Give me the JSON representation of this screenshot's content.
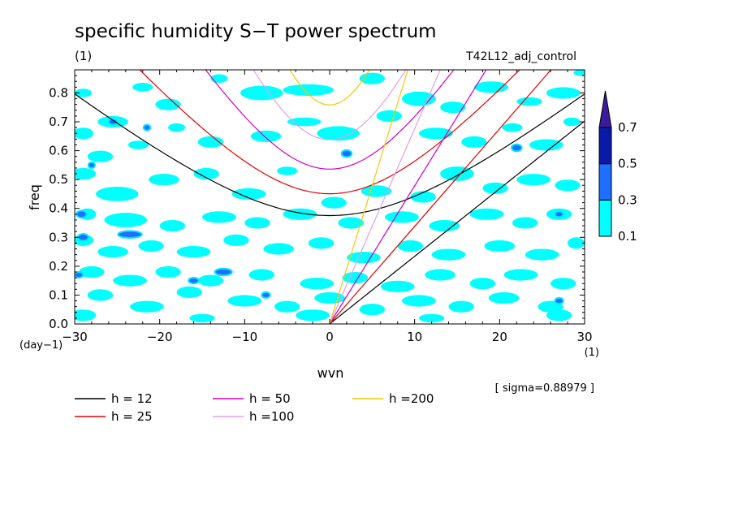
{
  "chart_data": {
    "type": "heatmap",
    "title": "specific humidity S−T power spectrum",
    "units_label": "(1)",
    "run_label": "T42L12_adj_control",
    "xlabel": "wvn",
    "ylabel": "freq",
    "x_unit_label": "(1)",
    "y_unit_label": "(day−1)",
    "xlim": [
      -30,
      30
    ],
    "ylim": [
      0,
      0.88
    ],
    "x_ticks": [
      -30,
      -20,
      -10,
      0,
      10,
      20,
      30
    ],
    "x_tick_labels": [
      "−30",
      "−20",
      "−10",
      "0",
      "10",
      "20",
      "30"
    ],
    "y_ticks": [
      0,
      0.1,
      0.2,
      0.3,
      0.4,
      0.5,
      0.6,
      0.7,
      0.8
    ],
    "y_tick_labels": [
      "0.0",
      "0.1",
      "0.2",
      "0.3",
      "0.4",
      "0.5",
      "0.6",
      "0.7",
      "0.8"
    ],
    "sigma_text": "[ sigma=0.88979 ]",
    "colorbar": {
      "levels": [
        0.1,
        0.3,
        0.5,
        0.7
      ],
      "level_labels": [
        "0.1",
        "0.3",
        "0.5",
        "0.7"
      ],
      "colors": [
        "#00ffff",
        "#1f6fff",
        "#0a1aa8",
        "#3c1a9c"
      ]
    },
    "dispersion_curves": [
      {
        "label": "h = 12",
        "h": 12,
        "color": "#000000"
      },
      {
        "label": "h = 25",
        "h": 25,
        "color": "#e00000"
      },
      {
        "label": "h = 50",
        "h": 50,
        "color": "#d000c8"
      },
      {
        "label": "h =100",
        "h": 100,
        "color": "#e0a0e8"
      },
      {
        "label": "h =200",
        "h": 200,
        "color": "#f0c800"
      }
    ],
    "blobs": [
      [
        -29.0,
        0.8,
        1.0,
        0.015,
        0.1
      ],
      [
        -25.5,
        0.7,
        1.8,
        0.02,
        0.1
      ],
      [
        -22.0,
        0.82,
        1.2,
        0.015,
        0.1
      ],
      [
        -19.0,
        0.76,
        1.5,
        0.02,
        0.1
      ],
      [
        -13.0,
        0.85,
        1.0,
        0.015,
        0.1
      ],
      [
        -8.0,
        0.8,
        2.5,
        0.025,
        0.1
      ],
      [
        -2.5,
        0.81,
        3.0,
        0.02,
        0.1
      ],
      [
        5.0,
        0.85,
        1.5,
        0.02,
        0.1
      ],
      [
        10.5,
        0.78,
        2.0,
        0.025,
        0.1
      ],
      [
        14.5,
        0.75,
        1.5,
        0.02,
        0.1
      ],
      [
        19.0,
        0.82,
        2.0,
        0.02,
        0.1
      ],
      [
        23.5,
        0.77,
        1.5,
        0.015,
        0.1
      ],
      [
        27.5,
        0.8,
        2.0,
        0.02,
        0.1
      ],
      [
        29.5,
        0.87,
        0.8,
        0.01,
        0.1
      ],
      [
        -29.0,
        0.66,
        1.2,
        0.02,
        0.1
      ],
      [
        -27.0,
        0.58,
        1.5,
        0.02,
        0.1
      ],
      [
        -22.5,
        0.62,
        1.2,
        0.015,
        0.1
      ],
      [
        -18.0,
        0.68,
        1.0,
        0.015,
        0.1
      ],
      [
        -14.0,
        0.63,
        1.5,
        0.02,
        0.1
      ],
      [
        -7.5,
        0.65,
        1.8,
        0.02,
        0.1
      ],
      [
        -3.0,
        0.7,
        2.0,
        0.015,
        0.1
      ],
      [
        1.0,
        0.66,
        2.5,
        0.025,
        0.1
      ],
      [
        7.0,
        0.72,
        1.5,
        0.02,
        0.1
      ],
      [
        12.5,
        0.66,
        2.0,
        0.02,
        0.1
      ],
      [
        17.0,
        0.63,
        1.5,
        0.02,
        0.1
      ],
      [
        21.5,
        0.68,
        1.2,
        0.015,
        0.1
      ],
      [
        25.5,
        0.62,
        2.0,
        0.02,
        0.1
      ],
      [
        28.5,
        0.7,
        1.0,
        0.015,
        0.1
      ],
      [
        -29.0,
        0.52,
        1.5,
        0.02,
        0.1
      ],
      [
        -25.0,
        0.45,
        2.5,
        0.025,
        0.1
      ],
      [
        -19.5,
        0.5,
        1.8,
        0.02,
        0.1
      ],
      [
        -14.5,
        0.52,
        1.5,
        0.02,
        0.1
      ],
      [
        -9.5,
        0.45,
        2.0,
        0.02,
        0.1
      ],
      [
        -5.0,
        0.53,
        1.2,
        0.015,
        0.1
      ],
      [
        0.5,
        0.42,
        1.5,
        0.02,
        0.1
      ],
      [
        5.5,
        0.46,
        1.8,
        0.02,
        0.1
      ],
      [
        11.0,
        0.44,
        1.5,
        0.02,
        0.1
      ],
      [
        15.0,
        0.52,
        2.0,
        0.025,
        0.1
      ],
      [
        19.5,
        0.47,
        1.5,
        0.02,
        0.1
      ],
      [
        24.0,
        0.5,
        2.0,
        0.02,
        0.1
      ],
      [
        28.0,
        0.48,
        1.5,
        0.02,
        0.1
      ],
      [
        -28.5,
        0.38,
        1.0,
        0.02,
        0.1
      ],
      [
        -24.0,
        0.36,
        2.5,
        0.025,
        0.1
      ],
      [
        -18.5,
        0.34,
        1.5,
        0.02,
        0.1
      ],
      [
        -13.0,
        0.37,
        2.0,
        0.02,
        0.1
      ],
      [
        -8.5,
        0.35,
        1.5,
        0.02,
        0.1
      ],
      [
        -3.5,
        0.38,
        2.0,
        0.02,
        0.1
      ],
      [
        2.5,
        0.35,
        1.5,
        0.02,
        0.1
      ],
      [
        8.5,
        0.37,
        2.0,
        0.02,
        0.1
      ],
      [
        13.5,
        0.34,
        1.8,
        0.02,
        0.1
      ],
      [
        18.5,
        0.38,
        2.0,
        0.02,
        0.1
      ],
      [
        23.0,
        0.35,
        1.5,
        0.02,
        0.1
      ],
      [
        27.0,
        0.38,
        1.5,
        0.02,
        0.1
      ],
      [
        -29.0,
        0.29,
        1.2,
        0.02,
        0.1
      ],
      [
        -25.5,
        0.25,
        1.8,
        0.02,
        0.1
      ],
      [
        -21.0,
        0.27,
        1.5,
        0.02,
        0.1
      ],
      [
        -16.0,
        0.25,
        2.0,
        0.02,
        0.1
      ],
      [
        -11.0,
        0.29,
        1.5,
        0.02,
        0.1
      ],
      [
        -6.0,
        0.26,
        1.8,
        0.02,
        0.1
      ],
      [
        -1.0,
        0.28,
        1.5,
        0.02,
        0.1
      ],
      [
        4.0,
        0.23,
        2.0,
        0.02,
        0.1
      ],
      [
        9.5,
        0.27,
        1.5,
        0.02,
        0.1
      ],
      [
        14.0,
        0.24,
        2.0,
        0.02,
        0.1
      ],
      [
        20.0,
        0.27,
        1.8,
        0.02,
        0.1
      ],
      [
        25.0,
        0.24,
        2.0,
        0.02,
        0.1
      ],
      [
        29.0,
        0.28,
        1.0,
        0.02,
        0.1
      ],
      [
        -28.0,
        0.18,
        1.5,
        0.02,
        0.1
      ],
      [
        -23.5,
        0.15,
        2.0,
        0.02,
        0.1
      ],
      [
        -19.0,
        0.18,
        1.5,
        0.02,
        0.1
      ],
      [
        -14.0,
        0.15,
        1.5,
        0.02,
        0.1
      ],
      [
        -8.0,
        0.17,
        1.5,
        0.02,
        0.1
      ],
      [
        -1.5,
        0.14,
        2.0,
        0.02,
        0.1
      ],
      [
        3.0,
        0.16,
        1.5,
        0.02,
        0.1
      ],
      [
        8.0,
        0.13,
        2.0,
        0.02,
        0.1
      ],
      [
        13.0,
        0.17,
        1.8,
        0.02,
        0.1
      ],
      [
        18.0,
        0.14,
        1.5,
        0.02,
        0.1
      ],
      [
        22.5,
        0.17,
        2.0,
        0.02,
        0.1
      ],
      [
        27.5,
        0.14,
        1.5,
        0.02,
        0.1
      ],
      [
        -27.0,
        0.1,
        1.5,
        0.02,
        0.1
      ],
      [
        -21.5,
        0.06,
        2.0,
        0.02,
        0.1
      ],
      [
        -16.5,
        0.11,
        1.5,
        0.02,
        0.1
      ],
      [
        -10.0,
        0.08,
        2.0,
        0.02,
        0.1
      ],
      [
        -5.0,
        0.06,
        1.5,
        0.02,
        0.1
      ],
      [
        0.0,
        0.09,
        1.8,
        0.02,
        0.1
      ],
      [
        5.0,
        0.05,
        1.5,
        0.02,
        0.1
      ],
      [
        10.5,
        0.08,
        2.0,
        0.02,
        0.1
      ],
      [
        15.5,
        0.06,
        1.5,
        0.02,
        0.1
      ],
      [
        20.5,
        0.09,
        1.8,
        0.02,
        0.1
      ],
      [
        26.0,
        0.06,
        1.5,
        0.02,
        0.1
      ],
      [
        -29.0,
        0.03,
        1.5,
        0.02,
        0.1
      ],
      [
        -15.0,
        0.02,
        1.5,
        0.015,
        0.1
      ],
      [
        -2.0,
        0.03,
        2.0,
        0.02,
        0.1
      ],
      [
        12.0,
        0.02,
        1.5,
        0.015,
        0.1
      ],
      [
        27.0,
        0.03,
        1.5,
        0.02,
        0.1
      ],
      [
        -29.2,
        0.38,
        0.6,
        0.012,
        0.3
      ],
      [
        -23.5,
        0.31,
        1.4,
        0.012,
        0.3
      ],
      [
        -12.5,
        0.18,
        1.0,
        0.012,
        0.3
      ],
      [
        -16.0,
        0.15,
        0.6,
        0.01,
        0.3
      ],
      [
        2.0,
        0.59,
        0.6,
        0.012,
        0.3
      ],
      [
        22.0,
        0.61,
        0.6,
        0.012,
        0.3
      ],
      [
        -29.0,
        0.3,
        0.6,
        0.012,
        0.3
      ],
      [
        27.0,
        0.38,
        0.5,
        0.01,
        0.3
      ],
      [
        -25.5,
        0.7,
        0.5,
        0.01,
        0.3
      ],
      [
        -29.5,
        0.17,
        0.5,
        0.01,
        0.3
      ],
      [
        27.0,
        0.08,
        0.5,
        0.01,
        0.3
      ],
      [
        -7.5,
        0.1,
        0.5,
        0.01,
        0.3
      ],
      [
        -28.0,
        0.55,
        0.4,
        0.01,
        0.3
      ],
      [
        -21.5,
        0.68,
        0.4,
        0.01,
        0.3
      ]
    ]
  }
}
